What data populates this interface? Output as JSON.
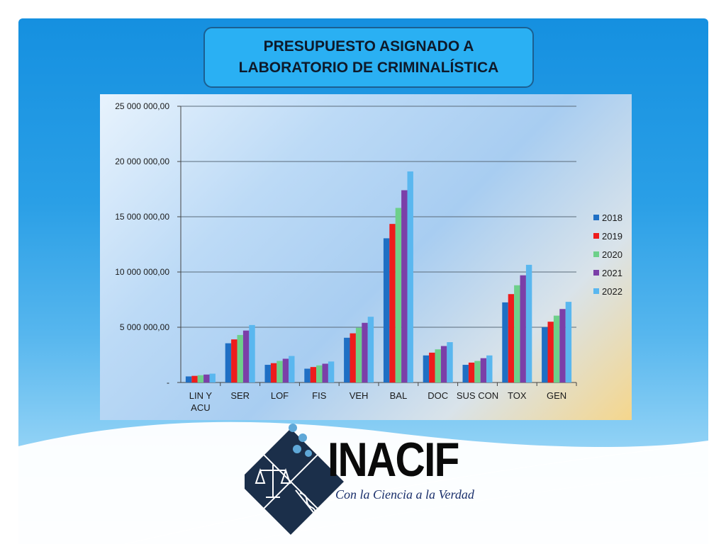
{
  "slide": {
    "title_line1": "PRESUPUESTO ASIGNADO A",
    "title_line2": "LABORATORIO DE CRIMINALÍSTICA"
  },
  "logo": {
    "name": "INACIF",
    "slogan": "Con la Ciencia a la Verdad"
  },
  "chart_data": {
    "type": "bar",
    "title": "",
    "xlabel": "",
    "ylabel": "",
    "categories": [
      "LIN Y ACU",
      "SER",
      "LOF",
      "FIS",
      "VEH",
      "BAL",
      "DOC",
      "SUS CON",
      "TOX",
      "GEN"
    ],
    "series": [
      {
        "name": "2018",
        "color": "#1f6fc4",
        "values": [
          550000,
          3550000,
          1600000,
          1250000,
          4050000,
          13050000,
          2450000,
          1600000,
          7250000,
          5000000
        ]
      },
      {
        "name": "2019",
        "color": "#ee1c1c",
        "values": [
          600000,
          3900000,
          1750000,
          1400000,
          4450000,
          14350000,
          2700000,
          1800000,
          8000000,
          5500000
        ]
      },
      {
        "name": "2020",
        "color": "#6dd08a",
        "values": [
          660000,
          4300000,
          1950000,
          1550000,
          4950000,
          15800000,
          3000000,
          1950000,
          8800000,
          6050000
        ]
      },
      {
        "name": "2021",
        "color": "#7b3fa8",
        "values": [
          720000,
          4700000,
          2150000,
          1700000,
          5400000,
          17400000,
          3300000,
          2200000,
          9700000,
          6650000
        ]
      },
      {
        "name": "2022",
        "color": "#5ab7ef",
        "values": [
          800000,
          5200000,
          2400000,
          1900000,
          5950000,
          19100000,
          3650000,
          2450000,
          10650000,
          7300000
        ]
      }
    ],
    "ylim": [
      0,
      25000000
    ],
    "yticks": [
      {
        "value": 0,
        "label": "-"
      },
      {
        "value": 5000000,
        "label": "5 000 000,00"
      },
      {
        "value": 10000000,
        "label": "10 000 000,00"
      },
      {
        "value": 15000000,
        "label": "15 000 000,00"
      },
      {
        "value": 20000000,
        "label": "20 000 000,00"
      },
      {
        "value": 25000000,
        "label": "25 000 000,00"
      }
    ],
    "grid": true,
    "legend_position": "right"
  }
}
